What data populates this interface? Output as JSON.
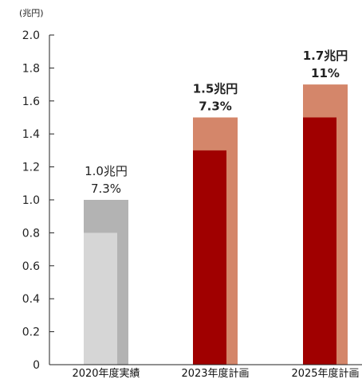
{
  "chart_data": {
    "type": "bar",
    "unit_label": "(兆円)",
    "ylim": [
      0,
      2.0
    ],
    "y_ticks": [
      "0",
      "0.2",
      "0.4",
      "0.6",
      "0.8",
      "1.0",
      "1.2",
      "1.4",
      "1.6",
      "1.8",
      "2.0"
    ],
    "categories": [
      "2020年度実績",
      "2023年度計画",
      "2025年度計画"
    ],
    "series": [
      {
        "values": [
          1.0,
          1.5,
          1.7
        ]
      },
      {
        "values": [
          0.8,
          1.3,
          1.5
        ]
      }
    ],
    "data_labels": [
      {
        "amount": "1.0兆円",
        "ratio": "7.3%",
        "bold": false
      },
      {
        "amount": "1.5兆円",
        "ratio": "7.3%",
        "bold": true
      },
      {
        "amount": "1.7兆円",
        "ratio": "11%",
        "bold": true
      }
    ],
    "colors": {
      "outer": [
        "#b3b3b3",
        "#d4866a",
        "#d4866a"
      ],
      "inner": [
        "#d6d6d6",
        "#a00000",
        "#a00000"
      ],
      "axis": "#222222"
    }
  }
}
